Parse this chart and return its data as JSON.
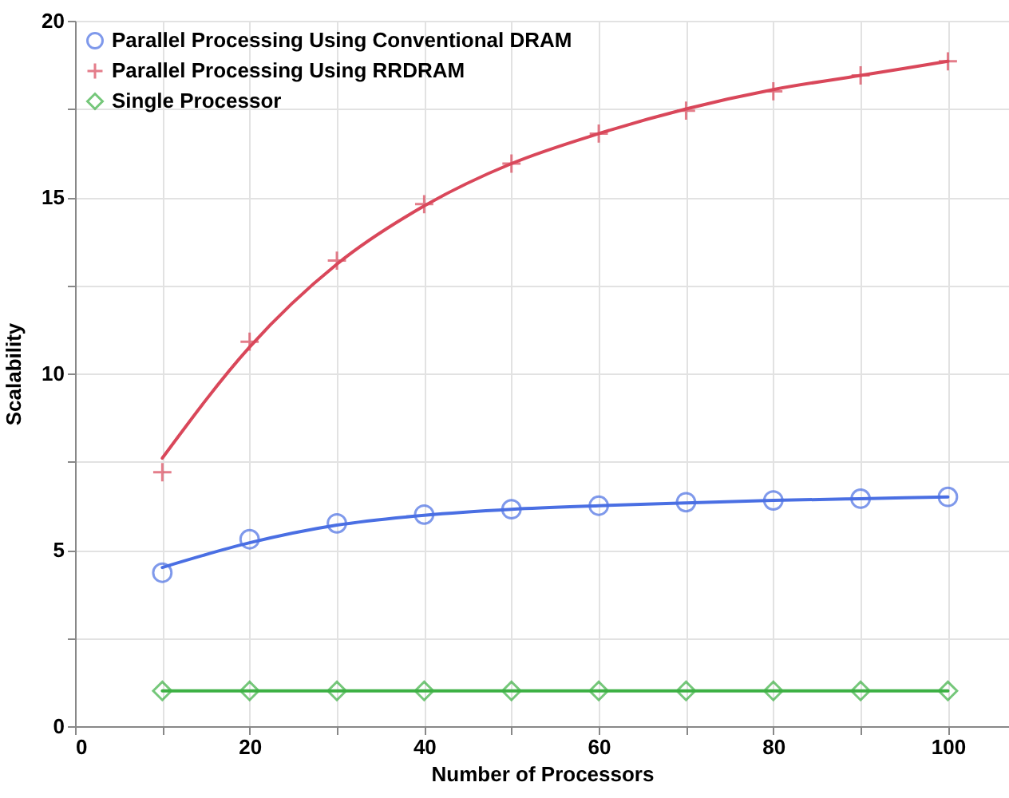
{
  "chart_data": {
    "type": "scatter",
    "xlabel": "Number of Processors",
    "ylabel": "Scalability",
    "x": [
      10,
      20,
      30,
      40,
      50,
      60,
      70,
      80,
      90,
      100
    ],
    "series": [
      {
        "name": "Parallel Processing Using Conventional DRAM",
        "marker": "circle",
        "color": "#4a6fe3",
        "values": [
          4.35,
          5.3,
          5.75,
          6.0,
          6.15,
          6.25,
          6.35,
          6.4,
          6.45,
          6.5
        ]
      },
      {
        "name": "Parallel Processing Using RRDRAM",
        "marker": "cross",
        "color": "#d9475a",
        "values": [
          7.2,
          10.9,
          13.2,
          14.8,
          15.95,
          16.8,
          17.45,
          18.0,
          18.45,
          18.85
        ]
      },
      {
        "name": "Single Processor",
        "marker": "diamond",
        "color": "#3cb043",
        "values": [
          1,
          1,
          1,
          1,
          1,
          1,
          1,
          1,
          1,
          1
        ]
      },
      {
        "type": "line",
        "color": "#4a6fe3",
        "values": [
          4.5,
          5.2,
          5.7,
          5.98,
          6.15,
          6.25,
          6.33,
          6.4,
          6.45,
          6.5
        ]
      },
      {
        "type": "line",
        "color": "#d9475a",
        "values": [
          7.6,
          10.75,
          13.1,
          14.75,
          15.95,
          16.8,
          17.5,
          18.05,
          18.45,
          18.85
        ]
      },
      {
        "type": "line",
        "color": "#3cb043",
        "values": [
          1,
          1,
          1,
          1,
          1,
          1,
          1,
          1,
          1,
          1
        ]
      }
    ],
    "xlim": [
      0,
      107
    ],
    "xticks": [
      0,
      {
        "value": 10,
        "label": null
      },
      20,
      {
        "value": 30,
        "label": null
      },
      40,
      {
        "value": 50,
        "label": null
      },
      60,
      {
        "value": 70,
        "label": null
      },
      80,
      {
        "value": 90,
        "label": null
      },
      100
    ],
    "ylim": [
      0,
      20
    ],
    "yticks": [
      0,
      {
        "value": 2.5,
        "label": null
      },
      5,
      {
        "value": 7.5,
        "label": null
      },
      10,
      {
        "value": 12.5,
        "label": null
      },
      15,
      {
        "value": 17.5,
        "label": null
      },
      20
    ],
    "grid": true,
    "legend": "top left"
  }
}
